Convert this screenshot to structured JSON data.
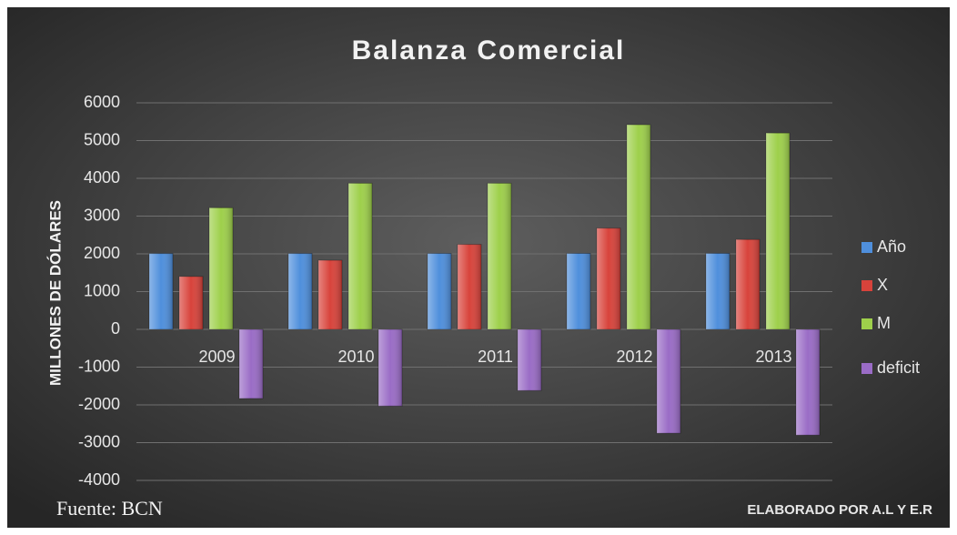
{
  "chart_data": {
    "type": "bar",
    "title": "Balanza Comercial",
    "y_label": "MILLONES DE DÓLARES",
    "categories": [
      "2009",
      "2010",
      "2011",
      "2012",
      "2013"
    ],
    "series": [
      {
        "name": "Año",
        "color": "#4f8fdc",
        "values": [
          2009,
          2010,
          2011,
          2012,
          2013
        ]
      },
      {
        "name": "X",
        "color": "#d8433b",
        "values": [
          1400,
          1830,
          2250,
          2680,
          2380
        ]
      },
      {
        "name": "M",
        "color": "#9ed04b",
        "values": [
          3220,
          3870,
          3870,
          5420,
          5200
        ]
      },
      {
        "name": "deficit",
        "color": "#9a6cc6",
        "values": [
          -1830,
          -2030,
          -1620,
          -2750,
          -2800
        ]
      }
    ],
    "ylim": [
      -4000,
      6000
    ],
    "yticks": [
      -4000,
      -3000,
      -2000,
      -1000,
      0,
      1000,
      2000,
      3000,
      4000,
      5000,
      6000
    ],
    "grid": true,
    "legend": "right",
    "source": "Fuente: BCN",
    "credit": "ELABORADO POR A.L Y E.R"
  }
}
